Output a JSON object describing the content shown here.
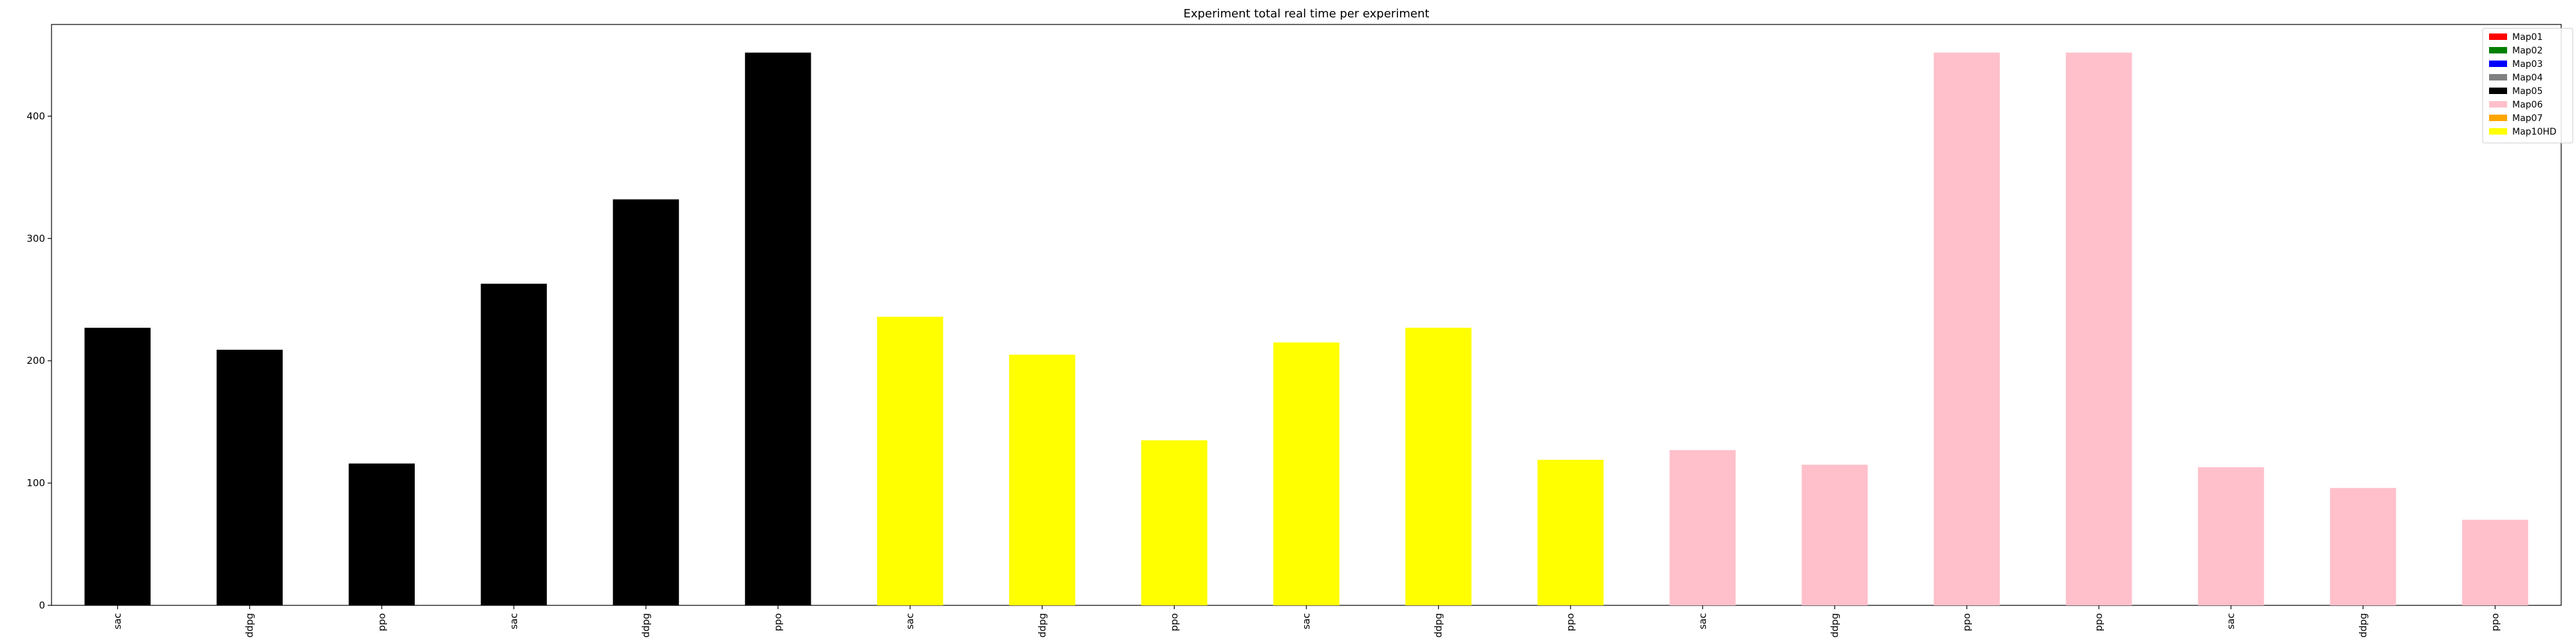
{
  "chart_data": {
    "type": "bar",
    "title": "Experiment total real time per experiment",
    "xlabel": "",
    "ylabel": "",
    "ylim": [
      0,
      475
    ],
    "yticks": [
      0,
      100,
      200,
      300,
      400
    ],
    "grid": false,
    "legend_placement": "top-right",
    "legend": [
      {
        "name": "Map01",
        "color": "#ff0000"
      },
      {
        "name": "Map02",
        "color": "#008000"
      },
      {
        "name": "Map03",
        "color": "#0000ff"
      },
      {
        "name": "Map04",
        "color": "#808080"
      },
      {
        "name": "Map05",
        "color": "#000000"
      },
      {
        "name": "Map06",
        "color": "#ffc0cb"
      },
      {
        "name": "Map07",
        "color": "#ffa500"
      },
      {
        "name": "Map10HD",
        "color": "#ffff00"
      }
    ],
    "categories": [
      "sac",
      "ddpg",
      "ppo",
      "sac",
      "ddpg",
      "ppo",
      "sac",
      "ddpg",
      "ppo",
      "sac",
      "ddpg",
      "ppo",
      "sac",
      "ddpg",
      "ppo",
      "ppo",
      "sac",
      "ddpg",
      "ppo"
    ],
    "values": [
      227,
      209,
      116,
      263,
      332,
      452,
      236,
      205,
      135,
      215,
      227,
      119,
      127,
      115,
      452,
      452,
      113,
      96,
      70
    ],
    "bar_colors": [
      "#000000",
      "#000000",
      "#000000",
      "#000000",
      "#000000",
      "#000000",
      "#ffff00",
      "#ffff00",
      "#ffff00",
      "#ffff00",
      "#ffff00",
      "#ffff00",
      "#ffc0cb",
      "#ffc0cb",
      "#ffc0cb",
      "#ffc0cb",
      "#ffc0cb",
      "#ffc0cb",
      "#ffc0cb"
    ]
  }
}
